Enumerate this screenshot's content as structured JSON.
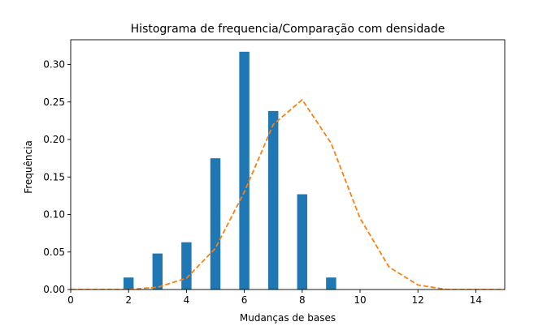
{
  "chart_data": {
    "type": "bar",
    "title": "Histograma de frequencia/Comparação com densidade",
    "xlabel": "Mudanças de bases",
    "ylabel": "Frequência",
    "xlim": [
      0,
      15
    ],
    "ylim": [
      0,
      0.333
    ],
    "x_ticks": [
      "0",
      "2",
      "4",
      "6",
      "8",
      "10",
      "12",
      "14"
    ],
    "y_ticks": [
      "0.00",
      "0.05",
      "0.10",
      "0.15",
      "0.20",
      "0.25",
      "0.30"
    ],
    "grid": false,
    "series": [
      {
        "type": "bar",
        "color": "#1f77b4",
        "bar_width": 0.35,
        "x": [
          2,
          3,
          4,
          5,
          6,
          7,
          8,
          9
        ],
        "values": [
          0.016,
          0.048,
          0.063,
          0.175,
          0.317,
          0.238,
          0.127,
          0.016
        ]
      },
      {
        "type": "line",
        "style": "dashed",
        "color": "#ff7f0e",
        "x": [
          0,
          1,
          2,
          3,
          4,
          5,
          6,
          7,
          8,
          9,
          10,
          11,
          12,
          13,
          14,
          15
        ],
        "values": [
          0.0,
          0.0,
          0.0,
          0.003,
          0.015,
          0.055,
          0.13,
          0.22,
          0.253,
          0.195,
          0.095,
          0.03,
          0.006,
          0.0,
          0.0,
          0.0
        ]
      }
    ]
  }
}
